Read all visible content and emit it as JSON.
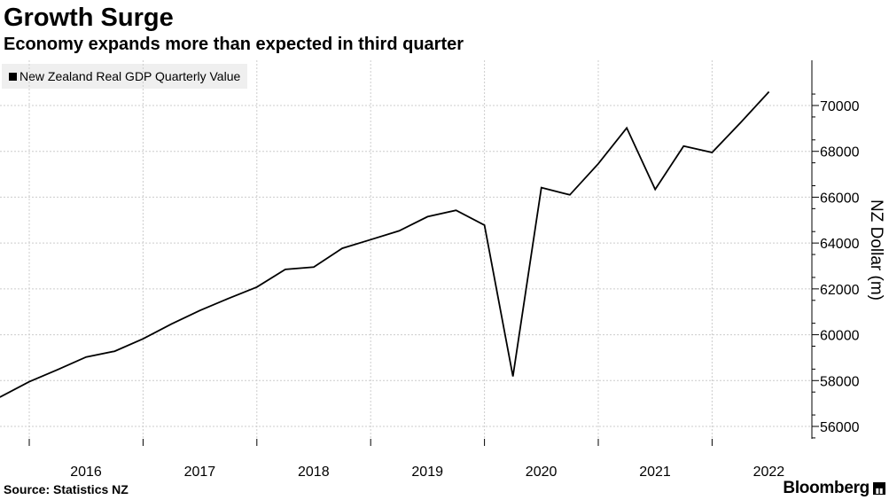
{
  "header": {
    "title": "Growth Surge",
    "subtitle": "Economy expands more than expected in third quarter"
  },
  "footer": {
    "source": "Source: Statistics NZ",
    "brand": "Bloomberg"
  },
  "colors": {
    "line": "#000000",
    "grid": "#cccccc",
    "legend_bg": "#efefef"
  },
  "chart_data": {
    "type": "line",
    "title": "Growth Surge",
    "subtitle": "Economy expands more than expected in third quarter",
    "xlabel": "",
    "ylabel": "NZ Dollar (m)",
    "ylim": [
      55500,
      72000
    ],
    "y_ticks": [
      56000,
      58000,
      60000,
      62000,
      64000,
      66000,
      68000,
      70000
    ],
    "y_tick_labels": [
      "56000",
      "58000",
      "60000",
      "62000",
      "64000",
      "66000",
      "68000",
      "70000"
    ],
    "x_tick_labels": [
      "2016",
      "2017",
      "2018",
      "2019",
      "2020",
      "2021",
      "2022"
    ],
    "y_axis_position": "right",
    "grid": true,
    "legend_position": "top-left",
    "series": [
      {
        "name": "New Zealand Real GDP Quarterly Value",
        "x": [
          "2015-Q2",
          "2015-Q3",
          "2015-Q4",
          "2016-Q1",
          "2016-Q2",
          "2016-Q3",
          "2016-Q4",
          "2017-Q1",
          "2017-Q2",
          "2017-Q3",
          "2017-Q4",
          "2018-Q1",
          "2018-Q2",
          "2018-Q3",
          "2018-Q4",
          "2019-Q1",
          "2019-Q2",
          "2019-Q3",
          "2019-Q4",
          "2020-Q1",
          "2020-Q2",
          "2020-Q3",
          "2020-Q4",
          "2021-Q1",
          "2021-Q2",
          "2021-Q3",
          "2021-Q4",
          "2022-Q1",
          "2022-Q2",
          "2022-Q3"
        ],
        "values": [
          56750,
          57300,
          57950,
          58480,
          59030,
          59280,
          59820,
          60470,
          61060,
          61580,
          62080,
          62850,
          62950,
          63770,
          64150,
          64530,
          65150,
          65430,
          64780,
          58180,
          66420,
          66100,
          67460,
          69020,
          66340,
          68230,
          67950,
          69250,
          70600,
          null
        ]
      }
    ]
  }
}
